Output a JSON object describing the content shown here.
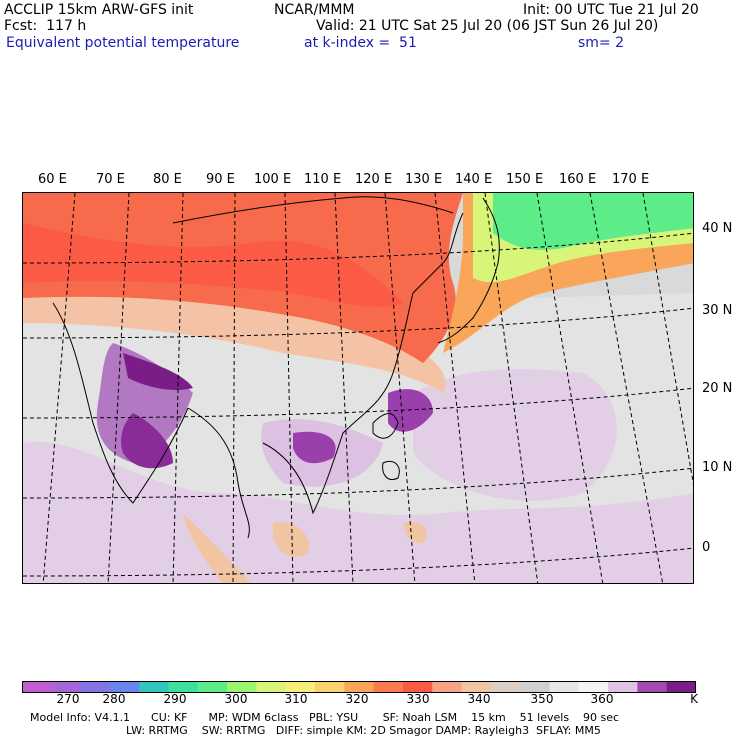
{
  "header": {
    "model": "ACCLIP 15km ARW-GFS init",
    "org": "NCAR/MMM",
    "init": "Init: 00 UTC Tue 21 Jul 20",
    "fcst": "Fcst:  117 h",
    "valid": "Valid: 21 UTC Sat 25 Jul 20 (06 JST Sun 26 Jul 20)",
    "field": "Equivalent potential temperature",
    "level": "at k-index =  51",
    "smooth": "sm= 2"
  },
  "lon_labels": [
    "60 E",
    "70 E",
    "80 E",
    "90 E",
    "100 E",
    "110 E",
    "120 E",
    "130 E",
    "140 E",
    "150 E",
    "160 E",
    "170 E"
  ],
  "lat_labels": [
    "40 N",
    "30 N",
    "20 N",
    "10 N",
    "0"
  ],
  "colorbar": {
    "colors": [
      "#c25cd1",
      "#a566d8",
      "#8474e4",
      "#6a86ec",
      "#33c6bf",
      "#3fdf9e",
      "#5ced88",
      "#9bf571",
      "#d8f57a",
      "#f8ef7a",
      "#fbd26b",
      "#f9a65a",
      "#f97b4f",
      "#fb5a45",
      "#f8a384",
      "#f1c4a2",
      "#dcd0c5",
      "#cfcfcf",
      "#e6e6e6",
      "#f4f4f4",
      "#dfc3e4",
      "#a24bb0",
      "#7a1d86"
    ],
    "ticks": [
      "270",
      "280",
      "290",
      "300",
      "310",
      "320",
      "330",
      "340",
      "350",
      "360"
    ],
    "unit": "K"
  },
  "footer": {
    "line1": "Model Info: V4.1.1      CU: KF      MP: WDM 6class   PBL: YSU       SF: Noah LSM    15 km    51 levels    90 sec",
    "line2": "LW: RRTMG    SW: RRTMG   DIFF: simple KM: 2D Smagor DAMP: Rayleigh3  SFLAY: MM5"
  }
}
